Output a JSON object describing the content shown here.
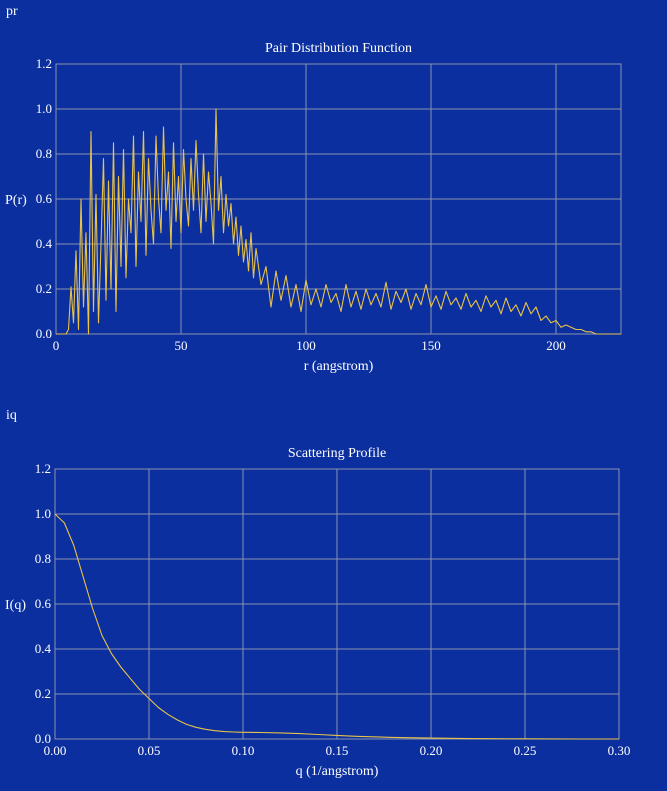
{
  "section_pr": "pr",
  "section_iq": "iq",
  "colors": {
    "background": "#0b2f9e",
    "series": "#e8c24a",
    "grid": "#8a93b3",
    "text": "#ffffff"
  },
  "chart_data": [
    {
      "id": "pr",
      "type": "line",
      "title": "Pair Distribution Function",
      "xlabel": "r (angstrom)",
      "ylabel": "P(r)",
      "xlim": [
        0,
        226
      ],
      "ylim": [
        0,
        1.2
      ],
      "xticks": [
        0,
        50,
        100,
        150,
        200
      ],
      "xtick_labels": [
        "0",
        "50",
        "100",
        "150",
        "200"
      ],
      "yticks": [
        0,
        0.2,
        0.4,
        0.6,
        0.8,
        1.0,
        1.2
      ],
      "ytick_labels": [
        "0.0",
        "0.2",
        "0.4",
        "0.6",
        "0.8",
        "1.0",
        "1.2"
      ],
      "grid": true,
      "series": [
        {
          "x": [
            0,
            2,
            4,
            5,
            6,
            7,
            8,
            9,
            10,
            11,
            12,
            13,
            14,
            15,
            16,
            17,
            18,
            19,
            20,
            21,
            22,
            23,
            24,
            25,
            26,
            27,
            28,
            29,
            30,
            31,
            32,
            33,
            34,
            35,
            36,
            37,
            38,
            39,
            40,
            41,
            42,
            43,
            44,
            45,
            46,
            47,
            48,
            49,
            50,
            51,
            52,
            53,
            54,
            55,
            56,
            57,
            58,
            59,
            60,
            61,
            62,
            63,
            64,
            65,
            66,
            67,
            68,
            69,
            70,
            71,
            72,
            73,
            74,
            75,
            76,
            77,
            78,
            79,
            80,
            82,
            84,
            86,
            88,
            90,
            92,
            94,
            96,
            98,
            100,
            102,
            104,
            106,
            108,
            110,
            112,
            114,
            116,
            118,
            120,
            122,
            124,
            126,
            128,
            130,
            132,
            134,
            136,
            138,
            140,
            142,
            144,
            146,
            148,
            150,
            152,
            154,
            156,
            158,
            160,
            162,
            164,
            166,
            168,
            170,
            172,
            174,
            176,
            178,
            180,
            182,
            184,
            186,
            188,
            190,
            192,
            194,
            196,
            198,
            200,
            202,
            204,
            206,
            208,
            210,
            212,
            214,
            216,
            218,
            220,
            222,
            224,
            226
          ],
          "y": [
            0,
            0,
            0,
            0.02,
            0.21,
            0.05,
            0.37,
            0.02,
            0.6,
            0.12,
            0.45,
            0.0,
            0.9,
            0.1,
            0.62,
            0.05,
            0.4,
            0.78,
            0.15,
            0.68,
            0.2,
            0.85,
            0.1,
            0.7,
            0.3,
            0.82,
            0.25,
            0.6,
            0.45,
            0.88,
            0.3,
            0.72,
            0.5,
            0.9,
            0.35,
            0.78,
            0.55,
            0.4,
            0.88,
            0.6,
            0.45,
            0.92,
            0.55,
            0.72,
            0.38,
            0.85,
            0.5,
            0.7,
            0.45,
            0.82,
            0.6,
            0.48,
            0.78,
            0.55,
            0.86,
            0.62,
            0.45,
            0.8,
            0.5,
            0.72,
            0.58,
            0.4,
            1.0,
            0.55,
            0.7,
            0.45,
            0.62,
            0.48,
            0.58,
            0.4,
            0.52,
            0.35,
            0.48,
            0.32,
            0.42,
            0.28,
            0.45,
            0.25,
            0.38,
            0.22,
            0.3,
            0.12,
            0.28,
            0.15,
            0.26,
            0.12,
            0.22,
            0.1,
            0.24,
            0.13,
            0.2,
            0.12,
            0.22,
            0.14,
            0.18,
            0.1,
            0.22,
            0.12,
            0.19,
            0.11,
            0.2,
            0.13,
            0.18,
            0.12,
            0.23,
            0.11,
            0.19,
            0.14,
            0.2,
            0.11,
            0.18,
            0.13,
            0.22,
            0.12,
            0.17,
            0.11,
            0.19,
            0.13,
            0.16,
            0.11,
            0.18,
            0.12,
            0.15,
            0.1,
            0.17,
            0.12,
            0.15,
            0.09,
            0.16,
            0.1,
            0.13,
            0.08,
            0.14,
            0.09,
            0.12,
            0.06,
            0.08,
            0.05,
            0.06,
            0.03,
            0.04,
            0.03,
            0.02,
            0.02,
            0.01,
            0.01,
            0.0,
            0.0,
            0.0,
            0.0,
            0.0,
            0.0
          ]
        }
      ]
    },
    {
      "id": "iq",
      "type": "line",
      "title": "Scattering Profile",
      "xlabel": "q (1/angstrom)",
      "ylabel": "I(q)",
      "xlim": [
        0,
        0.3
      ],
      "ylim": [
        0,
        1.2
      ],
      "xticks": [
        0,
        0.05,
        0.1,
        0.15,
        0.2,
        0.25,
        0.3
      ],
      "xtick_labels": [
        "0.00",
        "0.05",
        "0.10",
        "0.15",
        "0.20",
        "0.25",
        "0.30"
      ],
      "yticks": [
        0,
        0.2,
        0.4,
        0.6,
        0.8,
        1.0,
        1.2
      ],
      "ytick_labels": [
        "0.0",
        "0.2",
        "0.4",
        "0.6",
        "0.8",
        "1.0",
        "1.2"
      ],
      "grid": true,
      "series": [
        {
          "x": [
            0,
            0.005,
            0.01,
            0.015,
            0.02,
            0.025,
            0.03,
            0.035,
            0.04,
            0.045,
            0.05,
            0.055,
            0.06,
            0.065,
            0.07,
            0.075,
            0.08,
            0.085,
            0.09,
            0.095,
            0.1,
            0.11,
            0.12,
            0.13,
            0.14,
            0.15,
            0.16,
            0.18,
            0.2,
            0.22,
            0.25,
            0.28,
            0.3
          ],
          "y": [
            1.0,
            0.96,
            0.86,
            0.72,
            0.58,
            0.46,
            0.38,
            0.32,
            0.27,
            0.22,
            0.18,
            0.14,
            0.11,
            0.085,
            0.065,
            0.052,
            0.043,
            0.037,
            0.033,
            0.031,
            0.03,
            0.029,
            0.027,
            0.024,
            0.02,
            0.016,
            0.012,
            0.007,
            0.004,
            0.002,
            0.001,
            0.0,
            0.0
          ]
        }
      ]
    }
  ]
}
